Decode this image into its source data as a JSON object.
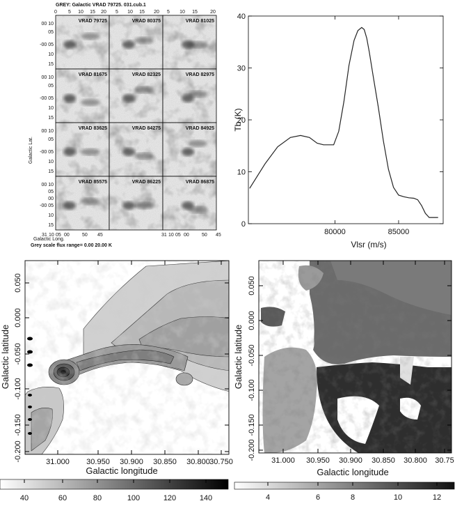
{
  "channel_maps": {
    "header": "GREY: Galactic  VRAD 79725.  031.cub.1",
    "top_ticks": [
      "0",
      "5",
      "10",
      "15",
      "20",
      "5",
      "10",
      "15",
      "20",
      "5",
      "10",
      "15",
      "20"
    ],
    "channels": [
      {
        "label": "VRAD 79725"
      },
      {
        "label": "VRAD 80375"
      },
      {
        "label": "VRAD 81025"
      },
      {
        "label": "VRAD 81675"
      },
      {
        "label": "VRAD 82325"
      },
      {
        "label": "VRAD 82975"
      },
      {
        "label": "VRAD 83625"
      },
      {
        "label": "VRAD 84275"
      },
      {
        "label": "VRAD 84925"
      },
      {
        "label": "VRAD 85575"
      },
      {
        "label": "VRAD 86225"
      },
      {
        "label": "VRAD 86875"
      }
    ],
    "lat_ticks": [
      "00 10",
      "05",
      "-00 05",
      "10",
      "15"
    ],
    "lat_ticks_last": [
      "00 10",
      "05",
      "00",
      "-00 05",
      "10",
      "15"
    ],
    "bottom_left_ticks": [
      "31",
      "10",
      "05",
      "00"
    ],
    "bottom_right_ticks": [
      "50",
      "45"
    ],
    "bottom_left_ticks_3": [
      "31",
      "10",
      "05",
      "00"
    ],
    "bottom_right_ticks_3": [
      "50",
      "45"
    ],
    "ylabel": "Galactic Lat.",
    "xlabel": "Galactic Long.",
    "footer": "Grey scale flux range= 0.00 20.00 K"
  },
  "chart_data": {
    "type": "line",
    "xlabel": "Vlsr (m/s)",
    "ylabel": "Tb (K)",
    "xlim": [
      73200,
      88500
    ],
    "ylim": [
      0,
      40
    ],
    "x_ticks": [
      80000,
      85000
    ],
    "y_ticks": [
      0,
      10,
      20,
      30,
      40
    ],
    "x": [
      73300,
      74500,
      75500,
      76500,
      77300,
      78000,
      78600,
      79100,
      79600,
      79900,
      80300,
      80700,
      81100,
      81500,
      81800,
      82100,
      82300,
      82500,
      82700,
      83000,
      83400,
      83800,
      84200,
      84600,
      85000,
      85400,
      85800,
      86200,
      86500,
      86800,
      87100,
      87400,
      87700,
      88100
    ],
    "y": [
      6.8,
      11.5,
      14.8,
      16.6,
      17.0,
      16.6,
      15.5,
      15.2,
      15.2,
      15.2,
      17.8,
      23.5,
      30.5,
      35.3,
      37.2,
      37.8,
      37.4,
      35.7,
      33.0,
      28.5,
      22.5,
      16.0,
      10.5,
      7.0,
      5.5,
      5.2,
      5.0,
      4.9,
      4.6,
      3.5,
      2.0,
      1.2,
      1.2,
      1.2
    ]
  },
  "integrated_map": {
    "ylabel": "Galactic latitude",
    "xlabel": "Galactic longitude",
    "y_ticks": [
      "0.050",
      "0.000",
      "-0.050",
      "-0.100",
      "-0.150",
      "-0.200"
    ],
    "x_ticks": [
      "31.000",
      "30.950",
      "30.900",
      "30.850",
      "30.800",
      "30.750"
    ],
    "colorbar_ticks": [
      "40",
      "60",
      "80",
      "100",
      "120",
      "140"
    ]
  },
  "velocity_map": {
    "ylabel": "Galactic latitude",
    "xlabel": "Galactic longitude",
    "y_ticks": [
      "0.050",
      "0.000",
      "-0.050",
      "-0.100",
      "-0.150",
      "-0.200"
    ],
    "x_ticks": [
      "31.000",
      "30.950",
      "30.900",
      "30.850",
      "30.800",
      "30.75"
    ],
    "colorbar_ticks": [
      "4",
      "6",
      "8",
      "10",
      "12"
    ]
  }
}
